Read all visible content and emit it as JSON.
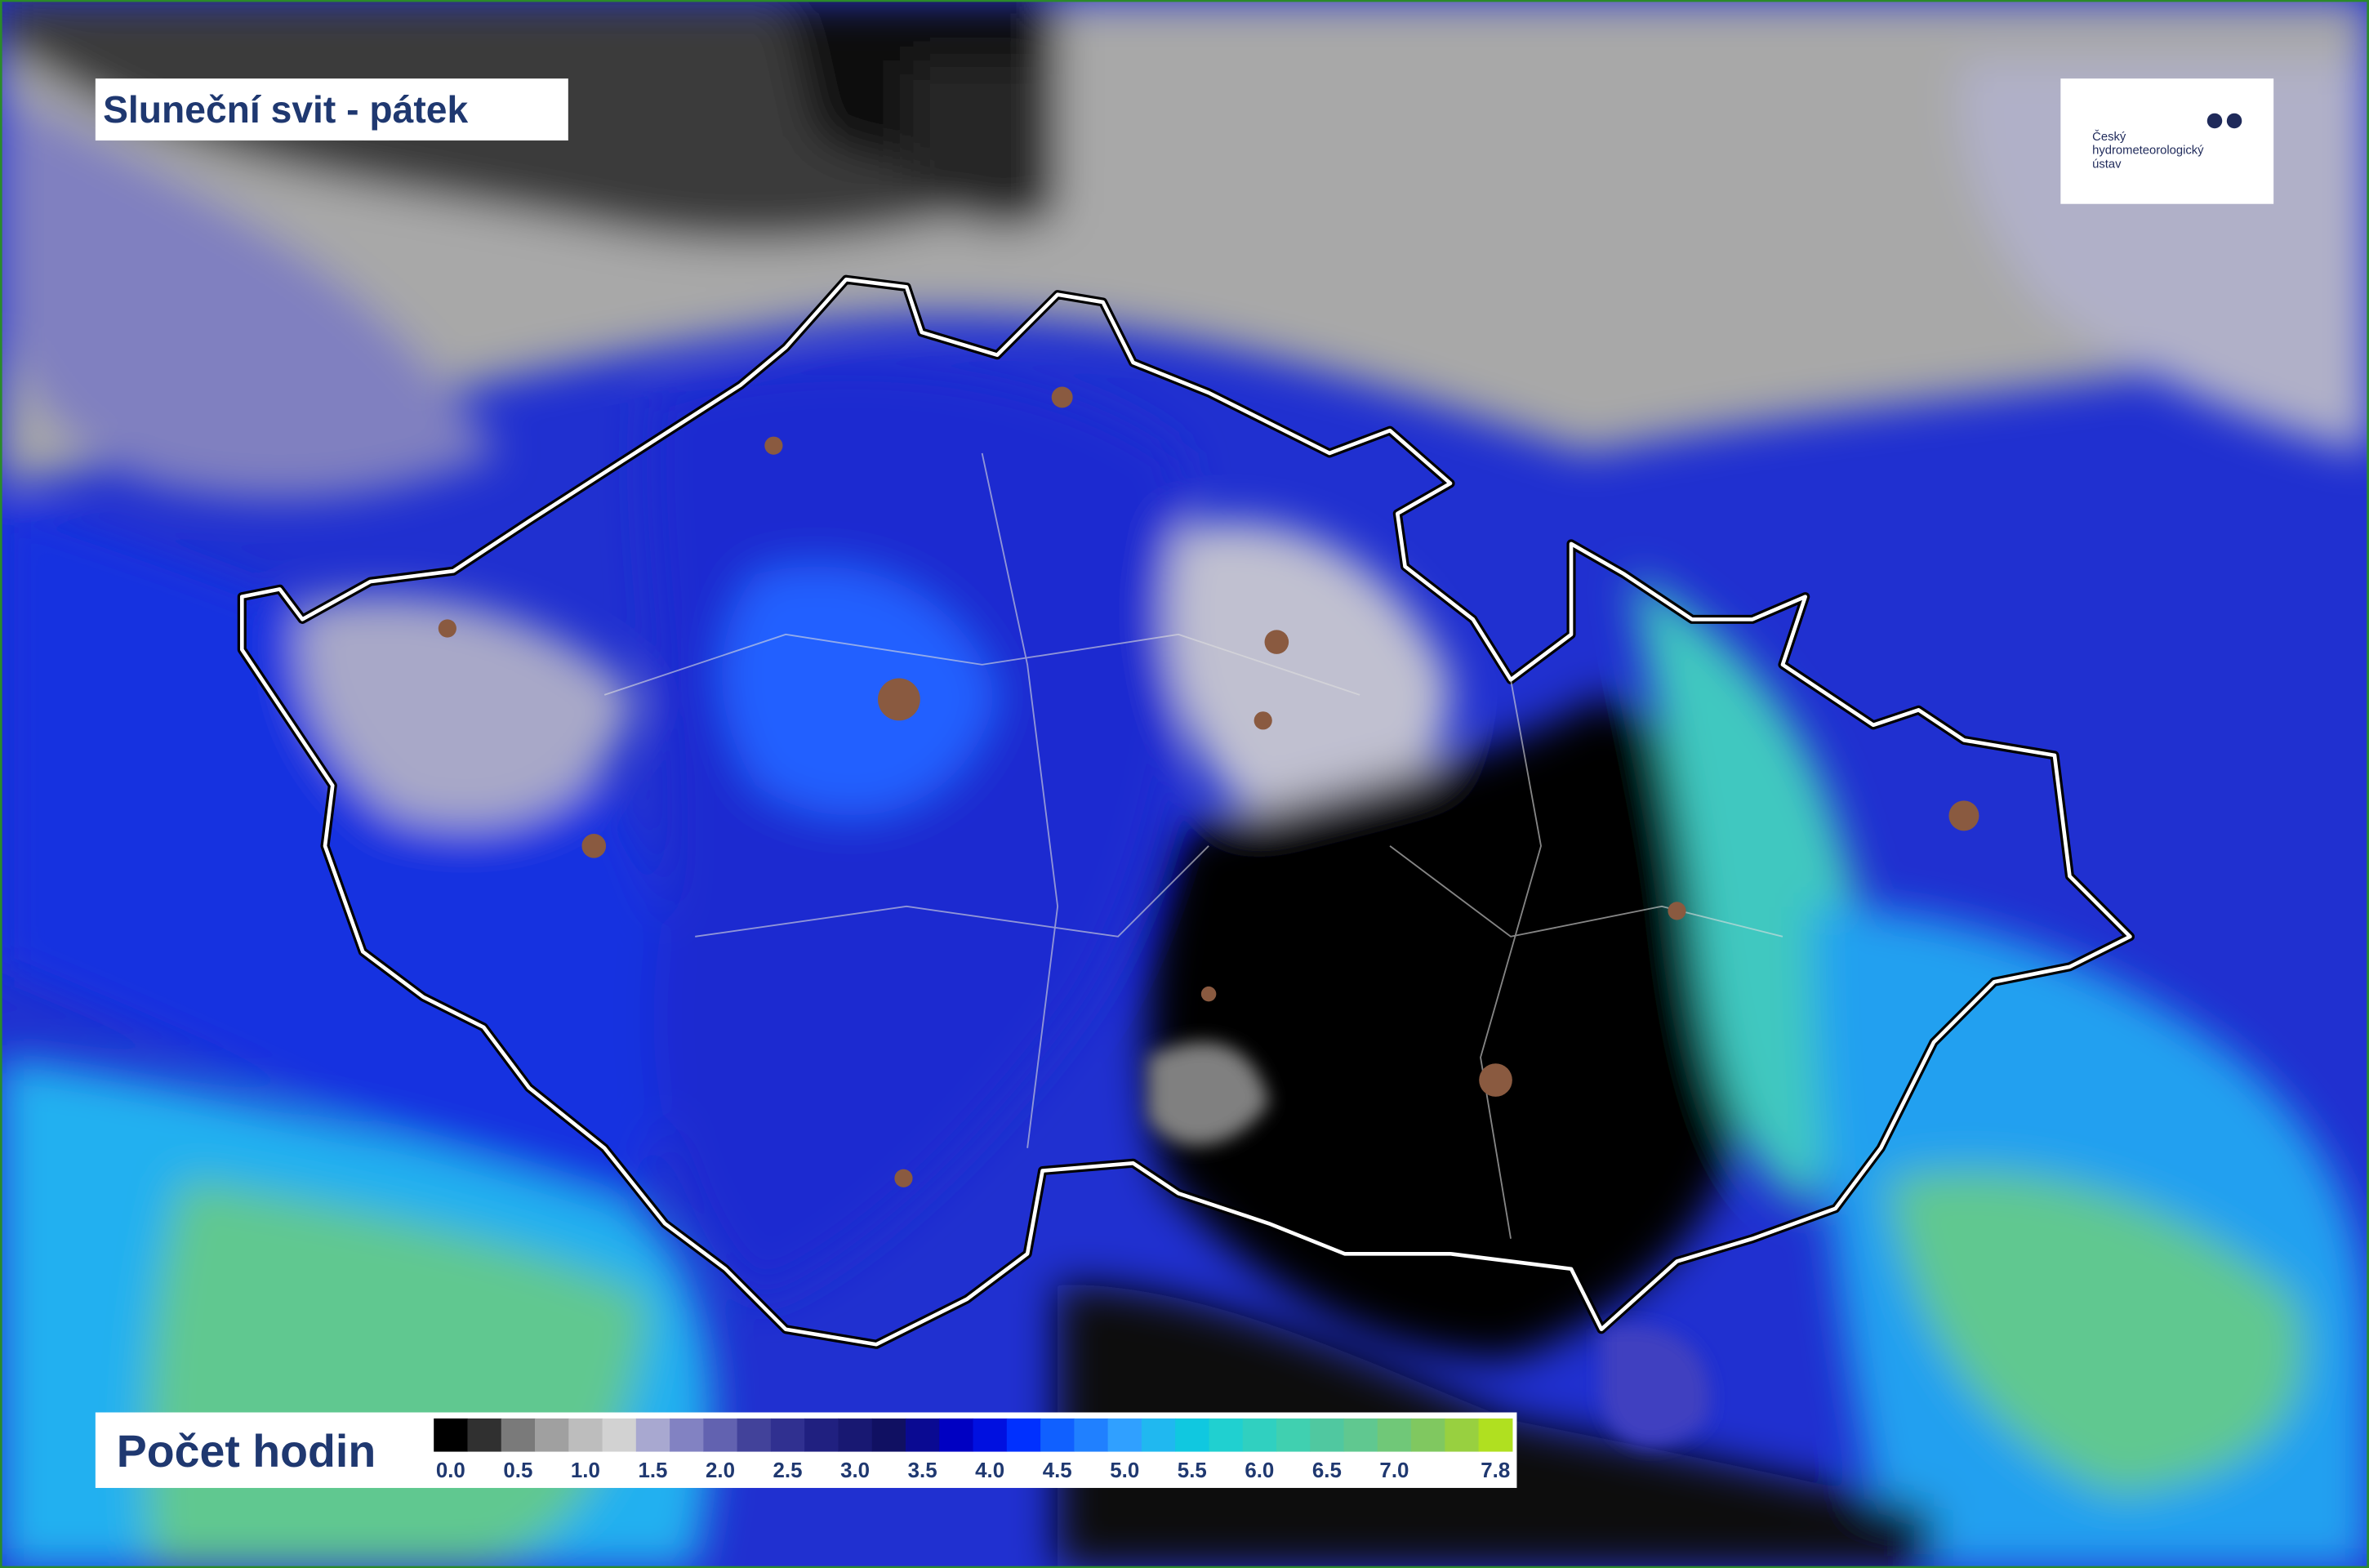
{
  "header": {
    "title": "Sluneční svit - pátek"
  },
  "logo": {
    "lines": [
      "Český",
      "hydrometeorologický",
      "ústav"
    ]
  },
  "legend": {
    "title": "Počet hodin",
    "colors": [
      "#000000",
      "#303030",
      "#7a7a7a",
      "#a0a0a0",
      "#bdbdbd",
      "#d2d2d2",
      "#a8a8d0",
      "#8282c2",
      "#6262b0",
      "#42429a",
      "#303090",
      "#202080",
      "#181872",
      "#101062",
      "#0a0a92",
      "#0000c2",
      "#0010e0",
      "#0030ff",
      "#1060ff",
      "#2080ff",
      "#30a0ff",
      "#20b8f0",
      "#10c8e0",
      "#20d0d0",
      "#30d0c0",
      "#40d0b0",
      "#50c8a0",
      "#60c890",
      "#70c878",
      "#80c860",
      "#98d040",
      "#b0e020"
    ],
    "labels": [
      "0.0",
      "0.5",
      "1.0",
      "1.5",
      "2.0",
      "2.5",
      "3.0",
      "3.5",
      "4.0",
      "4.5",
      "5.0",
      "5.5",
      "6.0",
      "6.5",
      "7.0",
      "7.8"
    ]
  }
}
